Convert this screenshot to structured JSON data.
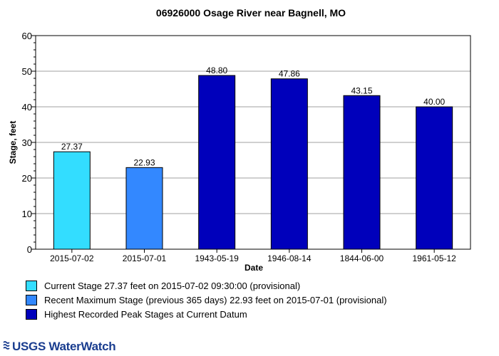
{
  "chart_data": {
    "type": "bar",
    "title": "06926000 Osage River near Bagnell, MO",
    "xlabel": "Date",
    "ylabel": "Stage, feet",
    "ylim": [
      0,
      60
    ],
    "yticks": [
      0,
      10,
      20,
      30,
      40,
      50,
      60
    ],
    "grid": true,
    "categories": [
      "2015-07-02",
      "2015-07-01",
      "1943-05-19",
      "1946-08-14",
      "1844-06-00",
      "1961-05-12"
    ],
    "values": [
      27.37,
      22.93,
      48.8,
      47.86,
      43.15,
      40.0
    ],
    "value_labels": [
      "27.37",
      "22.93",
      "48.80",
      "47.86",
      "43.15",
      "40.00"
    ],
    "bar_colors": [
      "#33ddff",
      "#3388ff",
      "#0000bb",
      "#0000bb",
      "#0000bb",
      "#0000bb"
    ],
    "legend": [
      {
        "label": "Current Stage 27.37 feet on 2015-07-02 09:30:00 (provisional)",
        "color": "#33ddff"
      },
      {
        "label": "Recent Maximum Stage (previous 365 days) 22.93 feet on 2015-07-01 (provisional)",
        "color": "#3388ff"
      },
      {
        "label": "Highest Recorded Peak Stages at Current Datum",
        "color": "#0000bb"
      }
    ]
  },
  "branding": {
    "logo_text": "USGS WaterWatch"
  }
}
